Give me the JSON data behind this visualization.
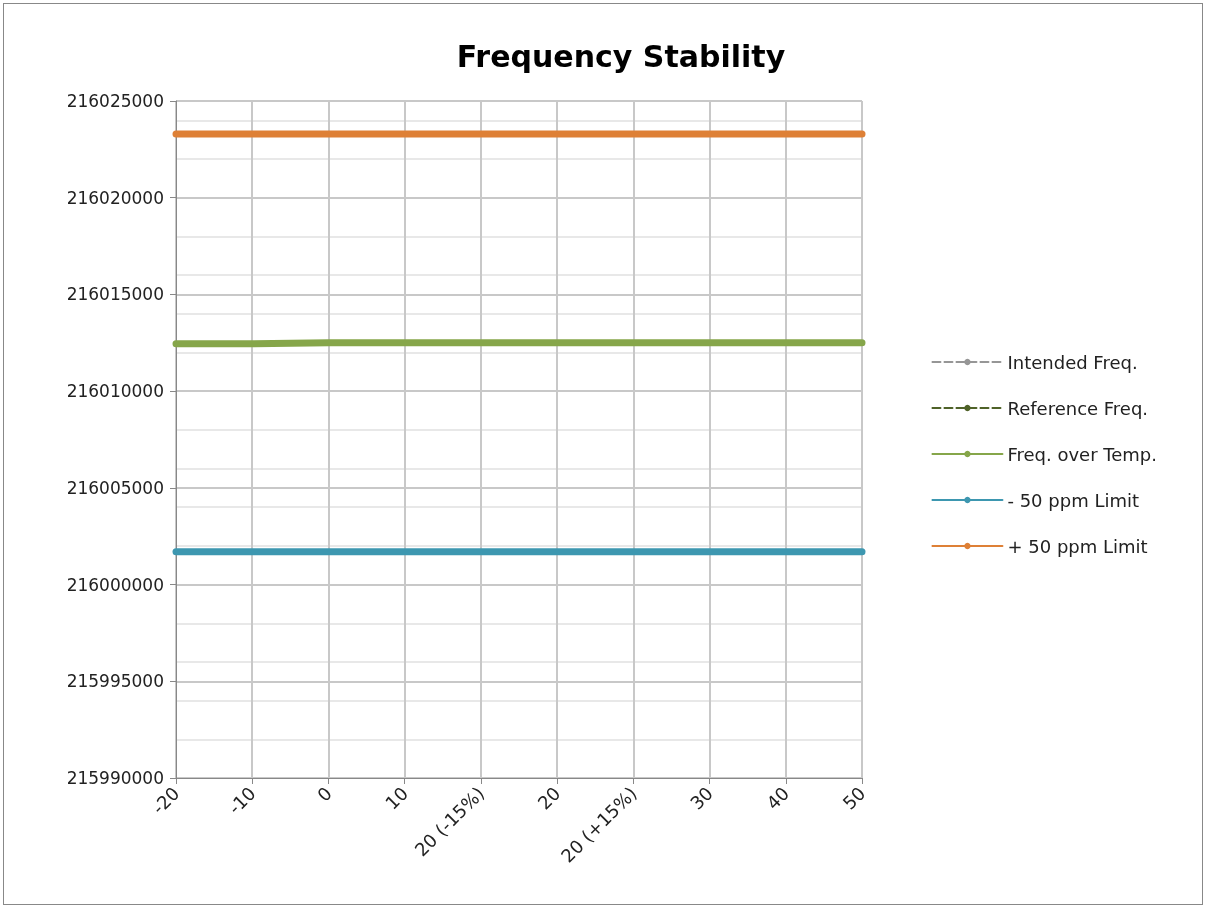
{
  "chart_data": {
    "type": "line",
    "title": "Frequency Stability",
    "categories": [
      "-20",
      "-10",
      "0",
      "10",
      "20 (-15%)",
      "20",
      "20 (+15%)",
      "30",
      "40",
      "50"
    ],
    "series": [
      {
        "name": "Intended Freq.",
        "color": "#969696",
        "line_style": "dashed",
        "values": [
          null,
          null,
          null,
          null,
          null,
          null,
          null,
          null,
          null,
          null
        ]
      },
      {
        "name": "Reference Freq.",
        "color": "#4f6228",
        "line_style": "dashed",
        "values": [
          null,
          null,
          null,
          null,
          null,
          null,
          null,
          null,
          null,
          null
        ]
      },
      {
        "name": "Freq. over Temp.",
        "color": "#86a64a",
        "line_style": "solid",
        "values": [
          216012450,
          216012450,
          216012500,
          216012500,
          216012500,
          216012500,
          216012500,
          216012500,
          216012500,
          216012500
        ]
      },
      {
        "name": "- 50 ppm Limit",
        "color": "#3d97b0",
        "line_style": "solid",
        "values": [
          216001700,
          216001700,
          216001700,
          216001700,
          216001700,
          216001700,
          216001700,
          216001700,
          216001700,
          216001700
        ]
      },
      {
        "name": "+ 50 ppm Limit",
        "color": "#de8036",
        "line_style": "solid",
        "values": [
          216023300,
          216023300,
          216023300,
          216023300,
          216023300,
          216023300,
          216023300,
          216023300,
          216023300,
          216023300
        ]
      }
    ],
    "ylim": [
      215990000,
      216025000
    ],
    "yticks": [
      215990000,
      215995000,
      216000000,
      216005000,
      216010000,
      216015000,
      216020000,
      216025000
    ],
    "grid": true,
    "legend": "right",
    "marker": "none"
  }
}
